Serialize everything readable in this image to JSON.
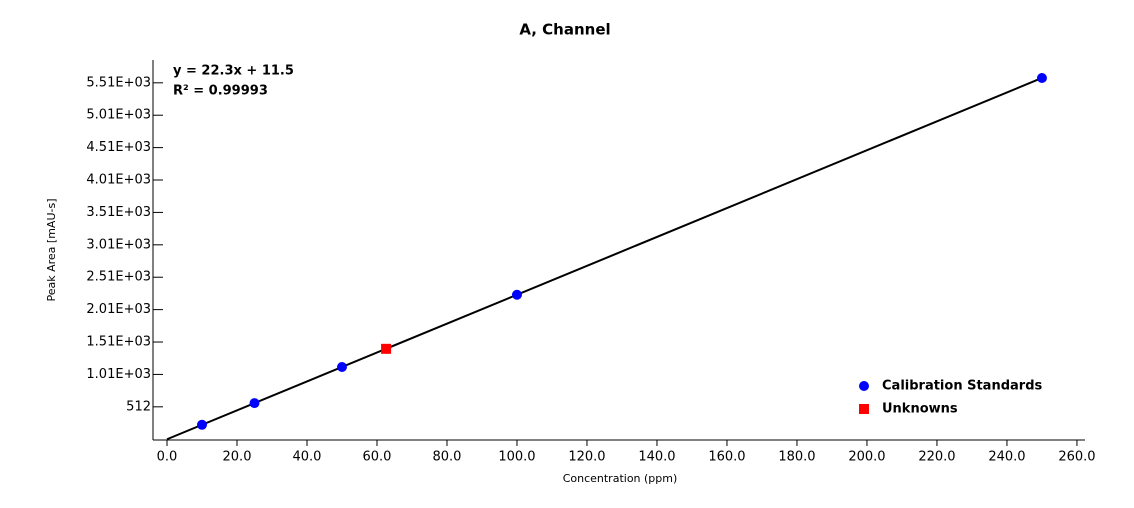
{
  "chart_data": {
    "type": "scatter",
    "title": "A, Channel",
    "x_label": "Concentration (ppm)",
    "y_label": "Peak Area [mAU-s]",
    "equation": "y = 22.3x + 11.5",
    "r_squared": "R² = 0.99993",
    "xlim": [
      -4,
      262.3
    ],
    "ylim": [
      0,
      5864
    ],
    "xticks": [
      {
        "value": 0,
        "label": "0.0"
      },
      {
        "value": 20,
        "label": "20.0"
      },
      {
        "value": 40,
        "label": "40.0"
      },
      {
        "value": 60,
        "label": "60.0"
      },
      {
        "value": 80,
        "label": "80.0"
      },
      {
        "value": 100,
        "label": "100.0"
      },
      {
        "value": 120,
        "label": "120.0"
      },
      {
        "value": 140,
        "label": "140.0"
      },
      {
        "value": 160,
        "label": "160.0"
      },
      {
        "value": 180,
        "label": "180.0"
      },
      {
        "value": 200,
        "label": "200.0"
      },
      {
        "value": 220,
        "label": "220.0"
      },
      {
        "value": 240,
        "label": "240.0"
      },
      {
        "value": 260,
        "label": "260.0"
      }
    ],
    "yticks": [
      512,
      {
        "value": 1012,
        "label": "1.01E+03"
      },
      {
        "value": 1512,
        "label": "1.51E+03"
      },
      {
        "value": 2012,
        "label": "2.01E+03"
      },
      {
        "value": 2512,
        "label": "2.51E+03"
      },
      {
        "value": 3012,
        "label": "3.01E+03"
      },
      {
        "value": 3512,
        "label": "3.51E+03"
      },
      {
        "value": 4012,
        "label": "4.01E+03"
      },
      {
        "value": 4512,
        "label": "4.51E+03"
      },
      {
        "value": 5012,
        "label": "5.01E+03"
      },
      {
        "value": 5512,
        "label": "5.51E+03"
      }
    ],
    "fit_line": {
      "color": "#000000",
      "x": [
        0,
        250
      ],
      "values": [
        11.5,
        5586.5
      ]
    },
    "series": [
      {
        "name": "Calibration Standards",
        "color": "#0000ff",
        "marker": "circle",
        "x": [
          10,
          25,
          50,
          100,
          250
        ],
        "values": [
          234.5,
          569,
          1126.5,
          2241.5,
          5586.5
        ]
      },
      {
        "name": "Unknowns",
        "color": "#ff0000",
        "marker": "square",
        "x": [
          62.6
        ],
        "values": [
          1407
        ]
      }
    ]
  }
}
